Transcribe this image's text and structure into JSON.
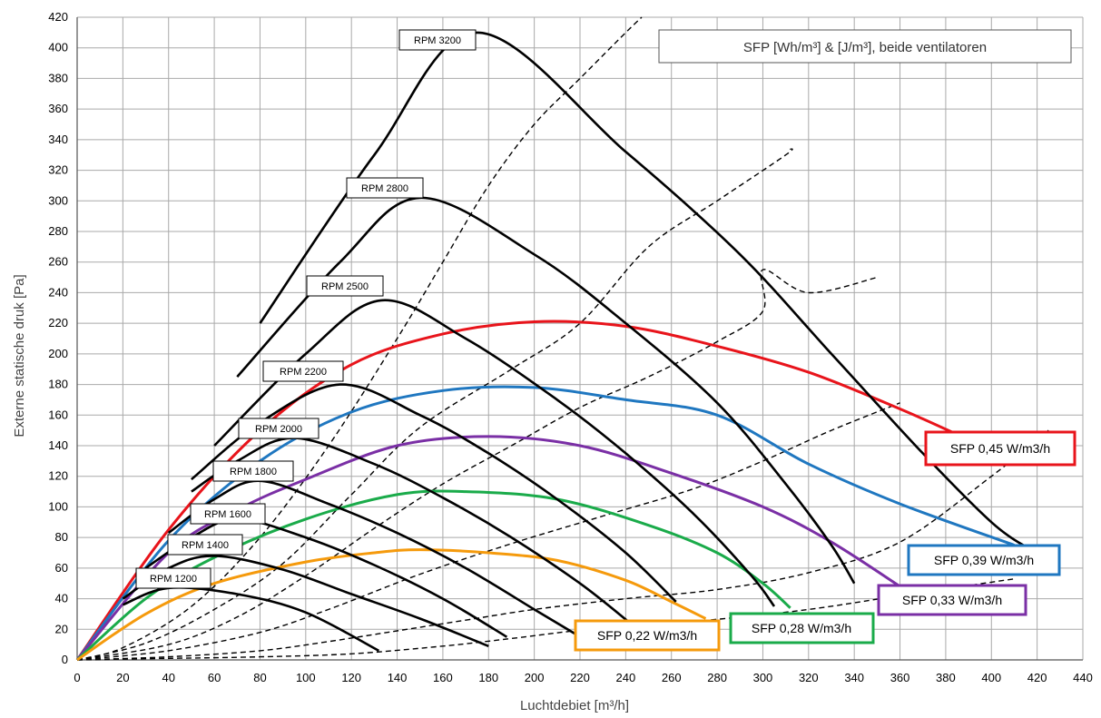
{
  "chart_data": {
    "type": "line",
    "title": "SFP [Wh/m³] & [J/m³], beide ventilatoren",
    "xlabel": "Luchtdebiet [m³/h]",
    "ylabel": "Externe statische druk [Pa]",
    "xlim": [
      0,
      440
    ],
    "ylim": [
      0,
      420
    ],
    "x_ticks": [
      0,
      20,
      40,
      60,
      80,
      100,
      120,
      140,
      160,
      180,
      200,
      220,
      240,
      260,
      280,
      300,
      320,
      340,
      360,
      380,
      400,
      420,
      440
    ],
    "y_ticks": [
      0,
      20,
      40,
      60,
      80,
      100,
      120,
      140,
      160,
      180,
      200,
      220,
      240,
      260,
      280,
      300,
      320,
      340,
      360,
      380,
      400,
      420
    ],
    "grid": true,
    "colors": {
      "rpm": "#000000",
      "system": "#000000",
      "sfp_045": "#e8141b",
      "sfp_039": "#1f77c0",
      "sfp_033": "#7a2fa5",
      "sfp_028": "#1aab4a",
      "sfp_022": "#f59a0c",
      "grid": "#a9a9a9"
    },
    "rpm_curves": [
      {
        "name": "RPM 1200",
        "points": [
          [
            0,
            0
          ],
          [
            20,
            36
          ],
          [
            40,
            47
          ],
          [
            70,
            43
          ],
          [
            100,
            31
          ],
          [
            132,
            6
          ]
        ]
      },
      {
        "name": "RPM 1400",
        "points": [
          [
            0,
            0
          ],
          [
            20,
            40
          ],
          [
            40,
            60
          ],
          [
            60,
            68
          ],
          [
            90,
            59
          ],
          [
            120,
            43
          ],
          [
            150,
            27
          ],
          [
            180,
            9
          ]
        ]
      },
      {
        "name": "RPM 1600",
        "points": [
          [
            0,
            0
          ],
          [
            30,
            60
          ],
          [
            50,
            80
          ],
          [
            70,
            92
          ],
          [
            100,
            80
          ],
          [
            130,
            62
          ],
          [
            160,
            40
          ],
          [
            188,
            15
          ]
        ]
      },
      {
        "name": "RPM 1800",
        "points": [
          [
            0,
            0
          ],
          [
            40,
            83
          ],
          [
            60,
            105
          ],
          [
            80,
            117
          ],
          [
            110,
            102
          ],
          [
            140,
            83
          ],
          [
            170,
            60
          ],
          [
            200,
            33
          ],
          [
            219,
            16
          ]
        ]
      },
      {
        "name": "RPM 2000",
        "points": [
          [
            0,
            0
          ],
          [
            50,
            110
          ],
          [
            70,
            130
          ],
          [
            95,
            145
          ],
          [
            130,
            128
          ],
          [
            160,
            106
          ],
          [
            190,
            80
          ],
          [
            220,
            50
          ],
          [
            242,
            24
          ]
        ]
      },
      {
        "name": "RPM 2200",
        "points": [
          [
            0,
            0
          ],
          [
            50,
            118
          ],
          [
            80,
            155
          ],
          [
            115,
            180
          ],
          [
            150,
            160
          ],
          [
            180,
            135
          ],
          [
            210,
            105
          ],
          [
            240,
            70
          ],
          [
            262,
            38
          ]
        ]
      },
      {
        "name": "RPM 2500",
        "points": [
          [
            0,
            0
          ],
          [
            60,
            140
          ],
          [
            100,
            200
          ],
          [
            133,
            235
          ],
          [
            170,
            210
          ],
          [
            210,
            170
          ],
          [
            240,
            135
          ],
          [
            270,
            95
          ],
          [
            295,
            55
          ],
          [
            305,
            35
          ]
        ]
      },
      {
        "name": "RPM 2800",
        "points": [
          [
            0,
            0
          ],
          [
            70,
            185
          ],
          [
            115,
            260
          ],
          [
            150,
            302
          ],
          [
            200,
            265
          ],
          [
            240,
            220
          ],
          [
            280,
            168
          ],
          [
            310,
            115
          ],
          [
            330,
            75
          ],
          [
            340,
            50
          ]
        ]
      },
      {
        "name": "RPM 3200",
        "points": [
          [
            0,
            0
          ],
          [
            80,
            220
          ],
          [
            130,
            330
          ],
          [
            175,
            410
          ],
          [
            240,
            332
          ],
          [
            290,
            265
          ],
          [
            330,
            200
          ],
          [
            370,
            135
          ],
          [
            400,
            90
          ],
          [
            416,
            73
          ]
        ]
      }
    ],
    "system_curves": [
      {
        "name": "system 1",
        "points": [
          [
            0,
            0
          ],
          [
            40,
            1
          ],
          [
            80,
            2
          ],
          [
            120,
            4
          ],
          [
            160,
            9
          ],
          [
            190,
            14
          ],
          [
            230,
            21
          ],
          [
            276,
            26
          ],
          [
            320,
            33
          ],
          [
            360,
            42
          ],
          [
            410,
            53
          ]
        ]
      },
      {
        "name": "system 2",
        "points": [
          [
            0,
            0
          ],
          [
            40,
            2
          ],
          [
            80,
            6
          ],
          [
            110,
            12
          ],
          [
            140,
            19
          ],
          [
            170,
            26
          ],
          [
            200,
            33
          ],
          [
            240,
            40
          ],
          [
            280,
            46
          ],
          [
            320,
            57
          ],
          [
            360,
            77
          ],
          [
            400,
            120
          ],
          [
            425,
            150
          ]
        ]
      },
      {
        "name": "system 3",
        "points": [
          [
            0,
            0
          ],
          [
            40,
            6
          ],
          [
            80,
            18
          ],
          [
            110,
            33
          ],
          [
            150,
            56
          ],
          [
            190,
            76
          ],
          [
            230,
            94
          ],
          [
            270,
            112
          ],
          [
            300,
            130
          ],
          [
            330,
            150
          ],
          [
            360,
            168
          ]
        ]
      },
      {
        "name": "system 4",
        "points": [
          [
            0,
            0
          ],
          [
            40,
            10
          ],
          [
            70,
            28
          ],
          [
            100,
            55
          ],
          [
            130,
            86
          ],
          [
            160,
            115
          ],
          [
            190,
            140
          ],
          [
            220,
            165
          ],
          [
            250,
            185
          ],
          [
            280,
            208
          ],
          [
            300,
            228
          ],
          [
            300,
            255
          ],
          [
            320,
            240
          ],
          [
            350,
            250
          ]
        ]
      },
      {
        "name": "system 5",
        "points": [
          [
            0,
            0
          ],
          [
            30,
            11
          ],
          [
            60,
            33
          ],
          [
            90,
            63
          ],
          [
            120,
            108
          ],
          [
            150,
            152
          ],
          [
            190,
            190
          ],
          [
            220,
            220
          ],
          [
            250,
            270
          ],
          [
            280,
            300
          ],
          [
            310,
            330
          ],
          [
            312,
            334
          ]
        ]
      },
      {
        "name": "system 6",
        "points": [
          [
            0,
            0
          ],
          [
            20,
            8
          ],
          [
            50,
            35
          ],
          [
            80,
            80
          ],
          [
            110,
            140
          ],
          [
            140,
            210
          ],
          [
            160,
            260
          ],
          [
            180,
            310
          ],
          [
            200,
            350
          ],
          [
            220,
            380
          ],
          [
            240,
            410
          ],
          [
            247,
            420
          ]
        ]
      }
    ],
    "sfp_curves": [
      {
        "name": "SFP 0,45 W/m3/h",
        "color": "#e8141b",
        "points": [
          [
            0,
            0
          ],
          [
            40,
            85
          ],
          [
            80,
            150
          ],
          [
            120,
            193
          ],
          [
            160,
            213
          ],
          [
            200,
            221
          ],
          [
            240,
            218
          ],
          [
            280,
            205
          ],
          [
            320,
            188
          ],
          [
            360,
            164
          ],
          [
            384,
            148
          ]
        ]
      },
      {
        "name": "SFP 0,39 W/m3/h",
        "color": "#1f77c0",
        "points": [
          [
            0,
            0
          ],
          [
            40,
            78
          ],
          [
            80,
            130
          ],
          [
            120,
            162
          ],
          [
            160,
            176
          ],
          [
            200,
            178
          ],
          [
            240,
            170
          ],
          [
            280,
            160
          ],
          [
            320,
            128
          ],
          [
            360,
            102
          ],
          [
            410,
            75
          ]
        ]
      },
      {
        "name": "SFP 0,33 W/m3/h",
        "color": "#7a2fa5",
        "points": [
          [
            0,
            0
          ],
          [
            40,
            70
          ],
          [
            70,
            98
          ],
          [
            100,
            118
          ],
          [
            140,
            140
          ],
          [
            180,
            146
          ],
          [
            220,
            140
          ],
          [
            260,
            122
          ],
          [
            300,
            100
          ],
          [
            330,
            77
          ],
          [
            362,
            46
          ]
        ]
      },
      {
        "name": "SFP 0,28 W/m3/h",
        "color": "#1aab4a",
        "points": [
          [
            0,
            0
          ],
          [
            30,
            40
          ],
          [
            60,
            67
          ],
          [
            100,
            92
          ],
          [
            140,
            108
          ],
          [
            170,
            110
          ],
          [
            210,
            105
          ],
          [
            250,
            88
          ],
          [
            280,
            70
          ],
          [
            300,
            50
          ],
          [
            312,
            34
          ]
        ]
      },
      {
        "name": "SFP 0,22 W/m3/h",
        "color": "#f59a0c",
        "points": [
          [
            0,
            0
          ],
          [
            30,
            30
          ],
          [
            60,
            50
          ],
          [
            100,
            64
          ],
          [
            130,
            70
          ],
          [
            150,
            72
          ],
          [
            180,
            70
          ],
          [
            210,
            65
          ],
          [
            240,
            52
          ],
          [
            260,
            38
          ],
          [
            275,
            27
          ]
        ]
      }
    ],
    "rpm_labels": [
      "RPM 3200",
      "RPM 2800",
      "RPM 2500",
      "RPM 2200",
      "RPM 2000",
      "RPM 1800",
      "RPM 1600",
      "RPM 1400",
      "RPM 1200"
    ],
    "sfp_labels": [
      "SFP 0,45 W/m3/h",
      "SFP 0,39 W/m3/h",
      "SFP  0,33 W/m3/h",
      "SFP 0,28 W/m3/h",
      "SFP 0,22 W/m3/h"
    ]
  }
}
